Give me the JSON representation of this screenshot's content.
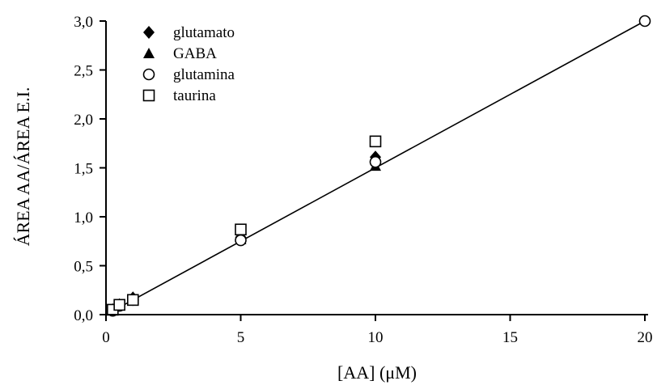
{
  "chart_data": {
    "type": "scatter",
    "title": "",
    "xlabel": "[AA] (μM)",
    "ylabel": "ÁREA AA/ÁREA E.I.",
    "xlim": [
      0,
      20
    ],
    "ylim": [
      0,
      3
    ],
    "x_ticks": [
      0,
      5,
      10,
      15,
      20
    ],
    "x_tick_labels": [
      "0",
      "5",
      "10",
      "15",
      "20"
    ],
    "y_ticks": [
      0,
      0.5,
      1,
      1.5,
      2,
      2.5,
      3
    ],
    "y_tick_labels": [
      "0,0",
      "0,5",
      "1,0",
      "1,5",
      "2,0",
      "2,5",
      "3,0"
    ],
    "grid": false,
    "legend_position": "top-left",
    "series": [
      {
        "name": "glutamato",
        "marker": "filled-diamond",
        "points": [
          [
            0.25,
            0.05
          ],
          [
            0.5,
            0.1
          ],
          [
            1,
            0.17
          ],
          [
            5,
            0.79
          ],
          [
            10,
            1.61
          ]
        ]
      },
      {
        "name": "GABA",
        "marker": "filled-triangle",
        "points": [
          [
            0.25,
            0.05
          ],
          [
            0.5,
            0.11
          ],
          [
            1,
            0.18
          ],
          [
            5,
            0.77
          ],
          [
            10,
            1.52
          ]
        ]
      },
      {
        "name": "glutamina",
        "marker": "open-circle",
        "points": [
          [
            0.25,
            0.04
          ],
          [
            0.5,
            0.09
          ],
          [
            1,
            0.15
          ],
          [
            5,
            0.76
          ],
          [
            10,
            1.56
          ],
          [
            20,
            3.0
          ]
        ]
      },
      {
        "name": "taurina",
        "marker": "open-square",
        "points": [
          [
            0.25,
            0.05
          ],
          [
            0.5,
            0.1
          ],
          [
            1,
            0.15
          ],
          [
            5,
            0.87
          ],
          [
            10,
            1.77
          ]
        ]
      }
    ],
    "regression_line": {
      "x": [
        0,
        20
      ],
      "y": [
        0.0,
        3.0
      ]
    }
  }
}
